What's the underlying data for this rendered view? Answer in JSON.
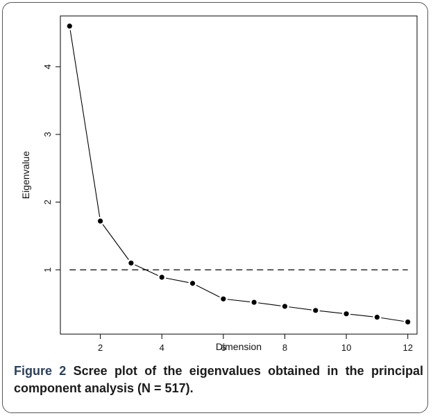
{
  "chart_data": {
    "type": "line",
    "xlabel": "Dimension",
    "ylabel": "Eigenvalue",
    "xlim": [
      0.7,
      12.3
    ],
    "ylim": [
      0.05,
      4.75
    ],
    "x_ticks": [
      2,
      4,
      6,
      8,
      10,
      12
    ],
    "y_ticks": [
      1,
      2,
      3,
      4
    ],
    "grid": false,
    "x": [
      1,
      2,
      3,
      4,
      5,
      6,
      7,
      8,
      9,
      10,
      11,
      12
    ],
    "series": [
      {
        "values": [
          4.6,
          1.72,
          1.1,
          0.89,
          0.8,
          0.57,
          0.52,
          0.46,
          0.4,
          0.35,
          0.3,
          0.23
        ]
      }
    ],
    "reference_line": {
      "y": 1,
      "style": "dashed"
    }
  },
  "caption": {
    "label": "Figure 2",
    "text": "Scree plot of the eigenvalues obtained in the principal component analysis (N = 517)."
  },
  "colors": {
    "line": "#000000",
    "frame": "#555555",
    "caption_label": "#2b3f5a"
  }
}
